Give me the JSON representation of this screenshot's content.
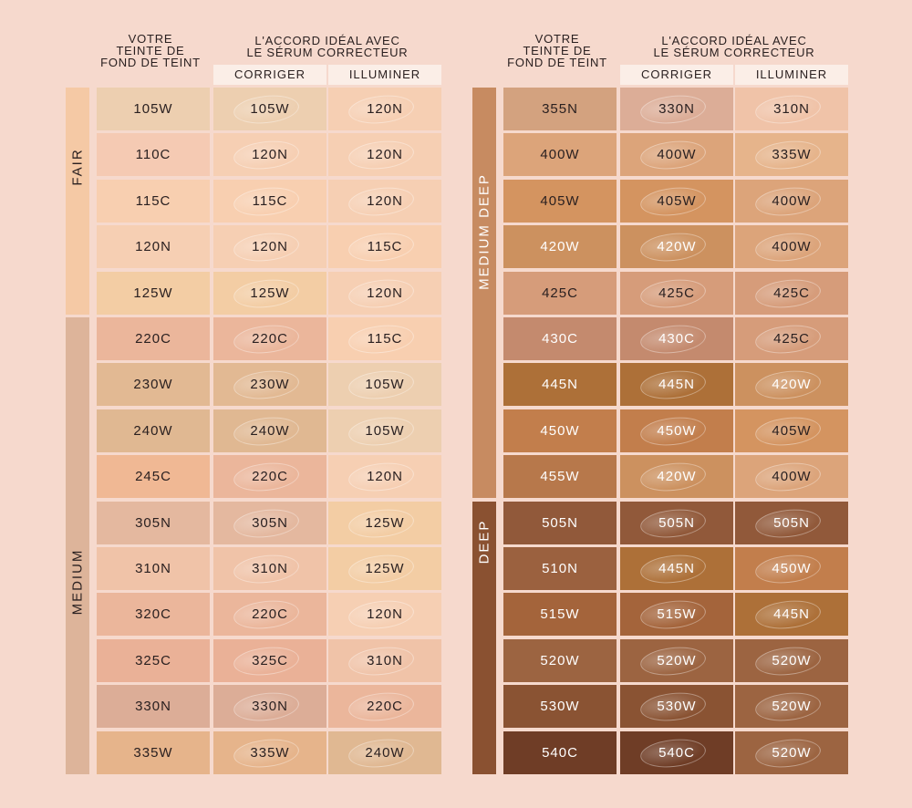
{
  "headers": {
    "votre": "VOTRE\nTEINTE DE\nFOND DE TEINT",
    "accord": "L'ACCORD IDÉAL AVEC\nLE SÉRUM CORRECTEUR",
    "corriger": "CORRIGER",
    "illuminer": "ILLUMINER"
  },
  "left": {
    "bands": [
      {
        "label": "FAIR",
        "rows": 5,
        "color": "#f5c9a5",
        "text_color": "#2a2020"
      },
      {
        "label": "MEDIUM",
        "rows": 10,
        "color": "#ddb49a",
        "text_color": "#2a2020"
      }
    ],
    "rows": [
      {
        "shade": "105W",
        "corriger": "105W",
        "illuminer": "120N",
        "c": [
          "#edcfb0",
          "#edcfb0",
          "#f6cfb3"
        ]
      },
      {
        "shade": "110C",
        "corriger": "120N",
        "illuminer": "120N",
        "c": [
          "#f5cab3",
          "#f6cfb3",
          "#f6cfb3"
        ]
      },
      {
        "shade": "115C",
        "corriger": "115C",
        "illuminer": "120N",
        "c": [
          "#f8cfb0",
          "#f8cfb0",
          "#f6cfb3"
        ]
      },
      {
        "shade": "120N",
        "corriger": "120N",
        "illuminer": "115C",
        "c": [
          "#f6cfb3",
          "#f6cfb3",
          "#f8cfb0"
        ]
      },
      {
        "shade": "125W",
        "corriger": "125W",
        "illuminer": "120N",
        "c": [
          "#f3cda4",
          "#f3cda4",
          "#f6cfb3"
        ]
      },
      {
        "shade": "220C",
        "corriger": "220C",
        "illuminer": "115C",
        "c": [
          "#ebb69b",
          "#ebb69b",
          "#f8cfb0"
        ]
      },
      {
        "shade": "230W",
        "corriger": "230W",
        "illuminer": "105W",
        "c": [
          "#e2b993",
          "#e2b993",
          "#edcfb0"
        ]
      },
      {
        "shade": "240W",
        "corriger": "240W",
        "illuminer": "105W",
        "c": [
          "#e0b892",
          "#e0b892",
          "#edcfb0"
        ]
      },
      {
        "shade": "245C",
        "corriger": "220C",
        "illuminer": "120N",
        "c": [
          "#f0b894",
          "#ebb69b",
          "#f6cfb3"
        ]
      },
      {
        "shade": "305N",
        "corriger": "305N",
        "illuminer": "125W",
        "c": [
          "#e4b89f",
          "#e4b89f",
          "#f3cda4"
        ]
      },
      {
        "shade": "310N",
        "corriger": "310N",
        "illuminer": "125W",
        "c": [
          "#f0c3a8",
          "#f0c3a8",
          "#f3cda4"
        ]
      },
      {
        "shade": "320C",
        "corriger": "220C",
        "illuminer": "120N",
        "c": [
          "#ebb69b",
          "#ebb69b",
          "#f6cfb3"
        ]
      },
      {
        "shade": "325C",
        "corriger": "325C",
        "illuminer": "310N",
        "c": [
          "#eab197",
          "#eab197",
          "#f0c3a8"
        ]
      },
      {
        "shade": "330N",
        "corriger": "330N",
        "illuminer": "220C",
        "c": [
          "#dcad97",
          "#dcad97",
          "#ebb69b"
        ]
      },
      {
        "shade": "335W",
        "corriger": "335W",
        "illuminer": "240W",
        "c": [
          "#e6b48b",
          "#e6b48b",
          "#e0b892"
        ]
      }
    ]
  },
  "right": {
    "bands": [
      {
        "label": "MEDIUM DEEP",
        "rows": 9,
        "color": "#c78b61",
        "text_color": "#ffffff"
      },
      {
        "label": "DEEP",
        "rows": 6,
        "color": "#8a5131",
        "text_color": "#ffffff"
      }
    ],
    "rows": [
      {
        "shade": "355N",
        "corriger": "330N",
        "illuminer": "310N",
        "c": [
          "#d3a27f",
          "#dcad97",
          "#f0c3a8"
        ]
      },
      {
        "shade": "400W",
        "corriger": "400W",
        "illuminer": "335W",
        "c": [
          "#dca47a",
          "#dca47a",
          "#e6b48b"
        ]
      },
      {
        "shade": "405W",
        "corriger": "405W",
        "illuminer": "400W",
        "c": [
          "#d49460",
          "#d49460",
          "#dca47a"
        ]
      },
      {
        "shade": "420W",
        "corriger": "420W",
        "illuminer": "400W",
        "c": [
          "#cc915f",
          "#cc915f",
          "#dca47a"
        ]
      },
      {
        "shade": "425C",
        "corriger": "425C",
        "illuminer": "425C",
        "c": [
          "#d69c7a",
          "#d69c7a",
          "#d69c7a"
        ]
      },
      {
        "shade": "430C",
        "corriger": "430C",
        "illuminer": "425C",
        "c": [
          "#c48a6e",
          "#c48a6e",
          "#d69c7a"
        ]
      },
      {
        "shade": "445N",
        "corriger": "445N",
        "illuminer": "420W",
        "c": [
          "#ad7038",
          "#ad7038",
          "#cc915f"
        ]
      },
      {
        "shade": "450W",
        "corriger": "450W",
        "illuminer": "405W",
        "c": [
          "#c27e4c",
          "#c27e4c",
          "#d49460"
        ]
      },
      {
        "shade": "455W",
        "corriger": "420W",
        "illuminer": "400W",
        "c": [
          "#b7784b",
          "#cc915f",
          "#dca47a"
        ]
      },
      {
        "shade": "505N",
        "corriger": "505N",
        "illuminer": "505N",
        "c": [
          "#91593a",
          "#91593a",
          "#91593a"
        ]
      },
      {
        "shade": "510N",
        "corriger": "445N",
        "illuminer": "450W",
        "c": [
          "#9b613f",
          "#ad7038",
          "#c27e4c"
        ]
      },
      {
        "shade": "515W",
        "corriger": "515W",
        "illuminer": "445N",
        "c": [
          "#a4643b",
          "#a4643b",
          "#ad7038"
        ]
      },
      {
        "shade": "520W",
        "corriger": "520W",
        "illuminer": "520W",
        "c": [
          "#9c6441",
          "#9c6441",
          "#9c6441"
        ]
      },
      {
        "shade": "530W",
        "corriger": "530W",
        "illuminer": "520W",
        "c": [
          "#8a5333",
          "#8a5333",
          "#9c6441"
        ]
      },
      {
        "shade": "540C",
        "corriger": "540C",
        "illuminer": "520W",
        "c": [
          "#6f3d26",
          "#6f3d26",
          "#9c6441"
        ]
      }
    ]
  }
}
